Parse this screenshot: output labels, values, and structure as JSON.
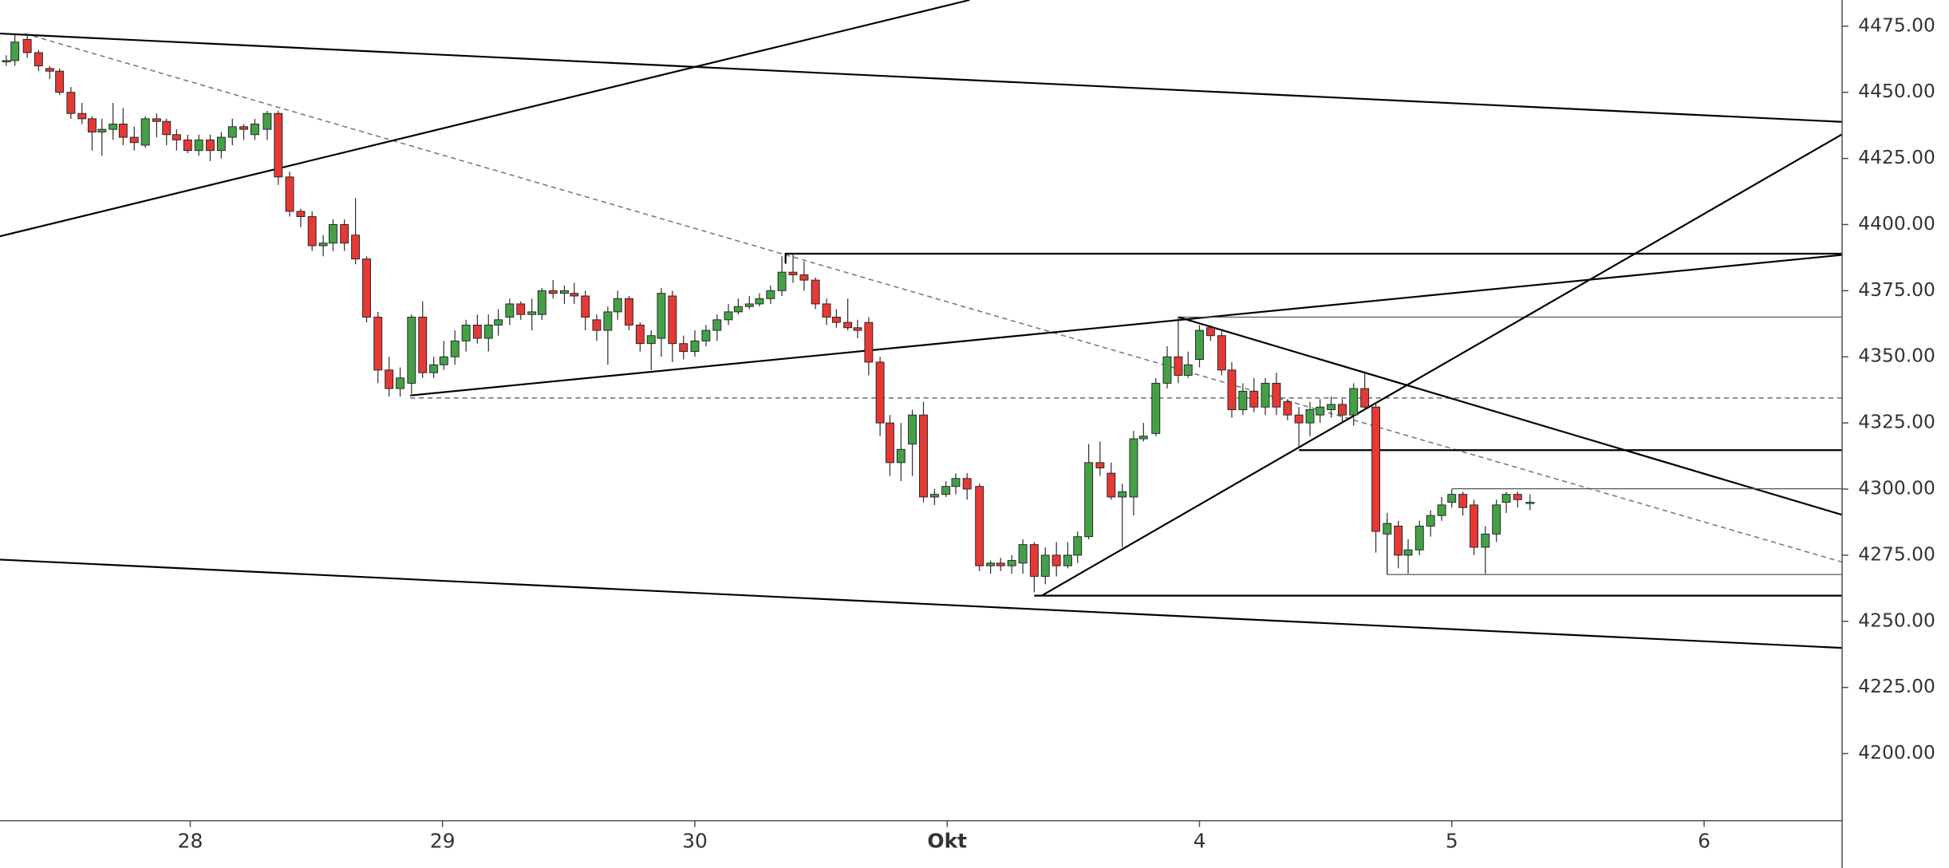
{
  "chart_data": {
    "type": "candlestick",
    "up_color": "#43a047",
    "down_color": "#e53935",
    "xlim": [
      27.246,
      34.547
    ],
    "ylim": [
      4174.6,
      4484.9
    ],
    "xticks": [
      28,
      29,
      30,
      {
        "value": 31,
        "label": "Okt"
      },
      {
        "value": 32,
        "label": "4"
      },
      {
        "value": 33,
        "label": "5"
      },
      {
        "value": 34,
        "label": "6"
      }
    ],
    "yticks": [
      {
        "value": 4200,
        "label": "4200.00"
      },
      {
        "value": 4225,
        "label": "4225.00"
      },
      {
        "value": 4250,
        "label": "4250.00"
      },
      {
        "value": 4275,
        "label": "4275.00"
      },
      {
        "value": 4300,
        "label": "4300.00"
      },
      {
        "value": 4325,
        "label": "4325.00"
      },
      {
        "value": 4350,
        "label": "4350.00"
      },
      {
        "value": 4375,
        "label": "4375.00"
      },
      {
        "value": 4400,
        "label": "4400.00"
      },
      {
        "value": 4425,
        "label": "4425.00"
      },
      {
        "value": 4450,
        "label": "4450.00"
      },
      {
        "value": 4475,
        "label": "4475.00"
      }
    ],
    "x": [
      27.271,
      27.305,
      27.354,
      27.399,
      27.443,
      27.482,
      27.527,
      27.571,
      27.611,
      27.65,
      27.694,
      27.734,
      27.778,
      27.822,
      27.867,
      27.906,
      27.946,
      27.99,
      28.034,
      28.079,
      28.123,
      28.167,
      28.212,
      28.256,
      28.305,
      28.349,
      28.394,
      28.438,
      28.483,
      28.527,
      28.566,
      28.611,
      28.655,
      28.699,
      28.744,
      28.788,
      28.832,
      28.877,
      28.921,
      28.965,
      29.005,
      29.049,
      29.093,
      29.138,
      29.182,
      29.221,
      29.266,
      29.31,
      29.354,
      29.394,
      29.438,
      29.483,
      29.522,
      29.566,
      29.611,
      29.655,
      29.694,
      29.739,
      29.783,
      29.827,
      29.867,
      29.911,
      29.955,
      30.0,
      30.044,
      30.088,
      30.133,
      30.172,
      30.216,
      30.256,
      30.3,
      30.345,
      30.389,
      30.433,
      30.478,
      30.522,
      30.561,
      30.606,
      30.645,
      30.689,
      30.734,
      30.773,
      30.817,
      30.862,
      30.906,
      30.95,
      30.995,
      31.034,
      31.079,
      31.128,
      31.172,
      31.212,
      31.256,
      31.3,
      31.345,
      31.389,
      31.433,
      31.478,
      31.517,
      31.561,
      31.606,
      31.65,
      31.694,
      31.739,
      31.778,
      31.827,
      31.872,
      31.916,
      31.955,
      32.0,
      32.044,
      32.088,
      32.128,
      32.172,
      32.216,
      32.261,
      32.305,
      32.349,
      32.394,
      32.438,
      32.478,
      32.522,
      32.566,
      32.611,
      32.655,
      32.699,
      32.744,
      32.788,
      32.827,
      32.872,
      32.916,
      32.96,
      33.0,
      33.044,
      33.088,
      33.133,
      33.177,
      33.216,
      33.261,
      33.31
    ],
    "open": [
      4462,
      4462,
      4470,
      4465,
      4459,
      4458,
      4450,
      4442,
      4440,
      4435,
      4436,
      4438,
      4433,
      4430,
      4440,
      4439,
      4434,
      4432,
      4428,
      4432,
      4428,
      4433,
      4437,
      4434,
      4436,
      4442,
      4418,
      4405,
      4403,
      4392,
      4393,
      4400,
      4396,
      4387,
      4365,
      4345,
      4338,
      4340,
      4365,
      4344,
      4347,
      4350,
      4356,
      4362,
      4357,
      4362,
      4365,
      4370,
      4366,
      4366,
      4375,
      4374,
      4374,
      4373,
      4364,
      4360,
      4367,
      4372,
      4362,
      4355,
      4357,
      4373,
      4355,
      4352,
      4356,
      4360,
      4364,
      4367,
      4369,
      4370,
      4372,
      4375,
      4382,
      4381,
      4379,
      4370,
      4365,
      4363,
      4361,
      4363,
      4348,
      4325,
      4310,
      4317,
      4328,
      4297,
      4298,
      4301,
      4304,
      4301,
      4271,
      4272,
      4271,
      4272,
      4279,
      4267,
      4275,
      4271,
      4275,
      4282,
      4310,
      4306,
      4297,
      4297,
      4319,
      4321,
      4340,
      4350,
      4343,
      4349,
      4361,
      4358,
      4345,
      4330,
      4337,
      4331,
      4340,
      4333,
      4328,
      4325,
      4328,
      4330,
      4332,
      4328,
      4338,
      4331,
      4283,
      4286,
      4275,
      4277,
      4286,
      4290,
      4295,
      4298,
      4294,
      4278,
      4283,
      4295,
      4298,
      4295
    ],
    "high": [
      4464,
      4472,
      4472,
      4466,
      4460,
      4459,
      4452,
      4446,
      4441,
      4440,
      4446,
      4444,
      4437,
      4441,
      4442,
      4440,
      4436,
      4434,
      4434,
      4434,
      4435,
      4440,
      4438,
      4440,
      4443,
      4443,
      4420,
      4406,
      4405,
      4396,
      4402,
      4402,
      4410,
      4388,
      4367,
      4350,
      4346,
      4366,
      4371,
      4350,
      4356,
      4360,
      4364,
      4366,
      4366,
      4368,
      4372,
      4371,
      4372,
      4376,
      4379,
      4377,
      4378,
      4375,
      4366,
      4369,
      4375,
      4373,
      4363,
      4360,
      4376,
      4375,
      4358,
      4360,
      4362,
      4366,
      4370,
      4372,
      4373,
      4374,
      4377,
      4388,
      4389,
      4386,
      4380,
      4372,
      4368,
      4372,
      4364,
      4365,
      4350,
      4328,
      4325,
      4330,
      4333,
      4300,
      4303,
      4306,
      4306,
      4302,
      4273,
      4274,
      4275,
      4281,
      4280,
      4278,
      4280,
      4280,
      4284,
      4317,
      4318,
      4310,
      4302,
      4322,
      4325,
      4342,
      4354,
      4365,
      4352,
      4362,
      4362,
      4360,
      4348,
      4340,
      4342,
      4342,
      4344,
      4334,
      4331,
      4333,
      4334,
      4335,
      4334,
      4340,
      4344,
      4333,
      4291,
      4288,
      4281,
      4288,
      4292,
      4297,
      4300,
      4299,
      4296,
      4286,
      4296,
      4299,
      4299,
      4298
    ],
    "low": [
      4460,
      4460,
      4463,
      4458,
      4455,
      4449,
      4440,
      4438,
      4428,
      4426,
      4432,
      4430,
      4428,
      4429,
      4433,
      4430,
      4428,
      4427,
      4426,
      4424,
      4425,
      4430,
      4432,
      4432,
      4432,
      4415,
      4403,
      4399,
      4390,
      4388,
      4390,
      4390,
      4385,
      4363,
      4340,
      4335,
      4335,
      4336,
      4342,
      4342,
      4345,
      4347,
      4352,
      4355,
      4352,
      4358,
      4362,
      4364,
      4360,
      4364,
      4372,
      4370,
      4370,
      4360,
      4356,
      4347,
      4364,
      4360,
      4352,
      4345,
      4350,
      4348,
      4349,
      4350,
      4354,
      4356,
      4362,
      4366,
      4368,
      4369,
      4370,
      4373,
      4378,
      4375,
      4368,
      4362,
      4361,
      4360,
      4357,
      4343,
      4320,
      4305,
      4303,
      4305,
      4295,
      4294,
      4297,
      4298,
      4296,
      4269,
      4268,
      4269,
      4268,
      4268,
      4261,
      4264,
      4267,
      4270,
      4272,
      4281,
      4305,
      4296,
      4278,
      4290,
      4318,
      4320,
      4338,
      4340,
      4342,
      4346,
      4356,
      4343,
      4327,
      4328,
      4329,
      4328,
      4328,
      4326,
      4316,
      4320,
      4325,
      4327,
      4325,
      4324,
      4330,
      4276,
      4268,
      4270,
      4268,
      4275,
      4282,
      4288,
      4293,
      4290,
      4275,
      4268,
      4280,
      4291,
      4293,
      4292
    ],
    "close": [
      4462,
      4469,
      4465,
      4460,
      4458,
      4450,
      4442,
      4440,
      4435,
      4436,
      4438,
      4433,
      4431,
      4440,
      4439,
      4434,
      4432,
      4428,
      4432,
      4428,
      4433,
      4437,
      4436,
      4438,
      4442,
      4418,
      4405,
      4403,
      4392,
      4393,
      4400,
      4393,
      4387,
      4365,
      4345,
      4338,
      4342,
      4365,
      4344,
      4347,
      4350,
      4356,
      4362,
      4357,
      4362,
      4364,
      4370,
      4366,
      4367,
      4375,
      4374,
      4375,
      4373,
      4365,
      4360,
      4367,
      4372,
      4362,
      4355,
      4358,
      4374,
      4355,
      4352,
      4356,
      4360,
      4364,
      4367,
      4369,
      4370,
      4372,
      4375,
      4382,
      4381,
      4379,
      4370,
      4365,
      4363,
      4361,
      4360,
      4348,
      4325,
      4310,
      4315,
      4328,
      4297,
      4298,
      4301,
      4304,
      4300,
      4271,
      4272,
      4271,
      4273,
      4279,
      4267,
      4275,
      4271,
      4275,
      4282,
      4310,
      4308,
      4297,
      4299,
      4319,
      4320,
      4340,
      4350,
      4343,
      4347,
      4360,
      4358,
      4345,
      4330,
      4337,
      4331,
      4340,
      4331,
      4328,
      4325,
      4330,
      4331,
      4332,
      4328,
      4338,
      4331,
      4284,
      4287,
      4275,
      4277,
      4286,
      4290,
      4294,
      4298,
      4293,
      4278,
      4283,
      4294,
      4298,
      4296,
      4295
    ]
  }
}
